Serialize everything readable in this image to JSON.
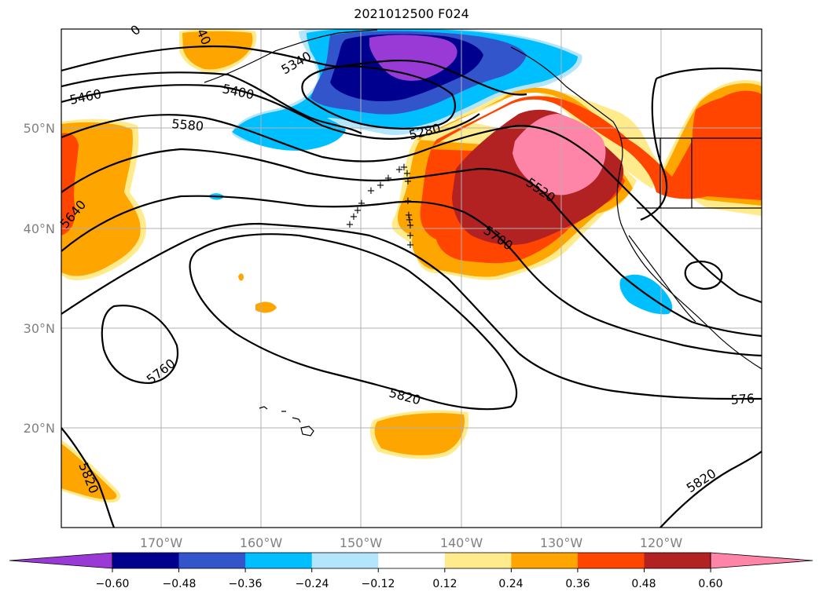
{
  "title": "2021012500 F024",
  "map": {
    "lat_ticks": [
      "50°N",
      "40°N",
      "30°N",
      "20°N"
    ],
    "lon_ticks": [
      "170°W",
      "160°W",
      "150°W",
      "140°W",
      "130°W",
      "120°W"
    ],
    "lat_range": [
      10,
      60
    ],
    "lon_range": [
      -180,
      -110
    ],
    "gridlines": true
  },
  "contours": {
    "labels": [
      "5460",
      "5400",
      "5340",
      "5580",
      "5280",
      "5520",
      "5640",
      "5700",
      "5760",
      "5820",
      "5820",
      "576",
      "5820",
      "0",
      "40"
    ]
  },
  "colorbar": {
    "tick_labels": [
      "−0.60",
      "−0.48",
      "−0.36",
      "−0.24",
      "−0.12",
      "0.12",
      "0.24",
      "0.36",
      "0.48",
      "0.60"
    ],
    "levels": [
      -0.6,
      -0.48,
      -0.36,
      -0.24,
      -0.12,
      0.12,
      0.24,
      0.36,
      0.48,
      0.6
    ],
    "colors": [
      "#9a3ad6",
      "#00008f",
      "#3355cc",
      "#00bfff",
      "#b3e5fc",
      "#ffffff",
      "#ffeb8c",
      "#ffa500",
      "#ff4500",
      "#b22222",
      "#ff85a8"
    ],
    "extend": "both"
  },
  "fill_colors": {
    "purple": "#9a3ad6",
    "navy": "#00008f",
    "royal": "#3355cc",
    "sky": "#00bfff",
    "pale_blue": "#b3e5fc",
    "pale_yellow": "#ffeb8c",
    "orange": "#ffa500",
    "red_orange": "#ff4500",
    "dark_red": "#b22222",
    "pink": "#ff85a8"
  },
  "observation_marker": "+"
}
